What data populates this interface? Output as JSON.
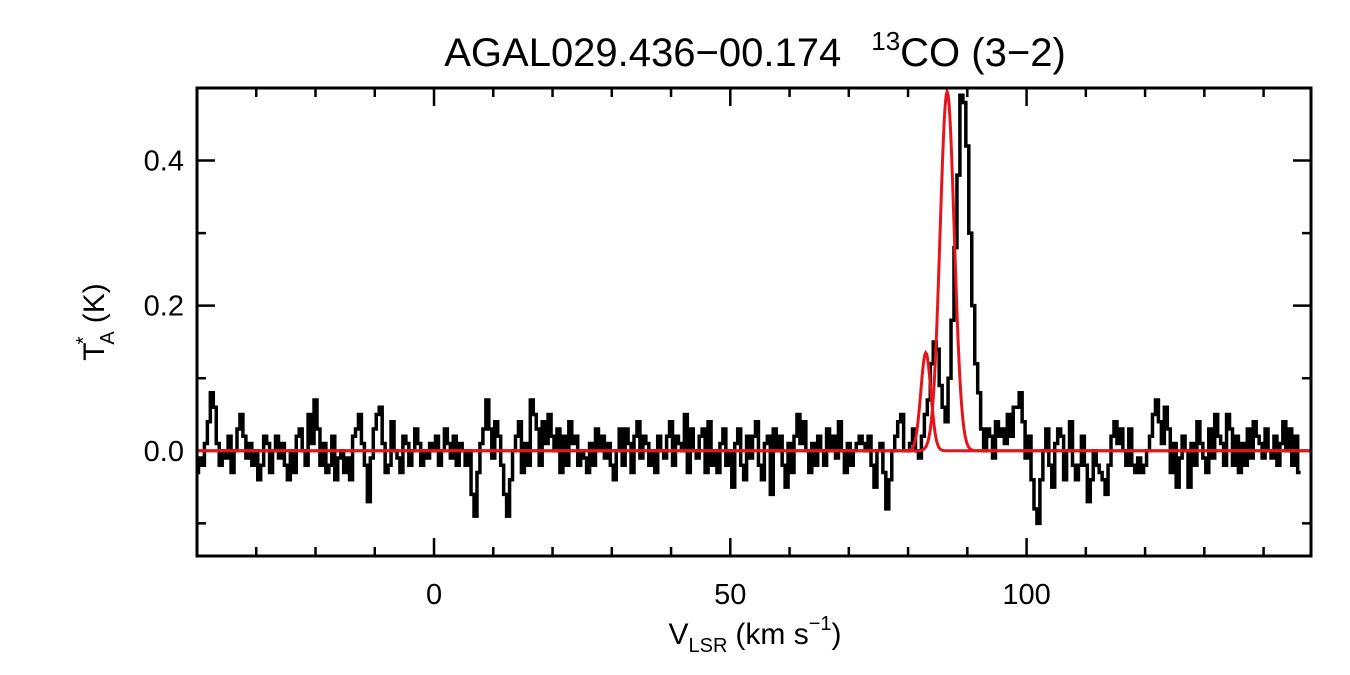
{
  "chart_data": {
    "type": "line",
    "title": {
      "source": "AGAL029.436−00.174",
      "isotope": "13",
      "molecule": "CO (3−2)"
    },
    "xlabel": {
      "main": "V",
      "subscript": "LSR",
      "units": "(km s",
      "exponent": "−1",
      "close": ")"
    },
    "ylabel": {
      "main": "T",
      "superscript": "*",
      "subscript": "A",
      "units": "(K)"
    },
    "xlim": [
      -40,
      148
    ],
    "ylim": [
      -0.145,
      0.5
    ],
    "xticks": [
      {
        "value": 0,
        "label": "0"
      },
      {
        "value": 50,
        "label": "50"
      },
      {
        "value": 100,
        "label": "100"
      }
    ],
    "yticks": [
      {
        "value": 0.0,
        "label": "0.0"
      },
      {
        "value": 0.2,
        "label": "0.2"
      },
      {
        "value": 0.4,
        "label": "0.4"
      }
    ],
    "x_minor_step": 10,
    "y_minor_step": 0.1,
    "spectrum": {
      "x_start": -40,
      "channel_width": 0.5,
      "color": "#000000",
      "values": [
        -0.03,
        -0.01,
        -0.02,
        0.01,
        0.04,
        0.08,
        0.06,
        0.01,
        -0.02,
        0.0,
        -0.01,
        0.02,
        -0.03,
        0.0,
        0.03,
        0.05,
        0.02,
        -0.01,
        0.01,
        -0.02,
        0.0,
        -0.04,
        -0.02,
        0.02,
        0.01,
        -0.03,
        0.0,
        0.02,
        -0.01,
        0.01,
        -0.02,
        -0.04,
        0.0,
        -0.03,
        0.02,
        0.03,
        0.0,
        -0.02,
        0.05,
        0.01,
        0.07,
        0.03,
        -0.02,
        0.01,
        -0.03,
        -0.02,
        0.02,
        -0.04,
        -0.01,
        0.0,
        -0.03,
        -0.01,
        -0.04,
        0.02,
        0.03,
        0.05,
        0.01,
        -0.02,
        -0.07,
        -0.01,
        0.03,
        0.05,
        0.06,
        0.01,
        -0.03,
        -0.02,
        0.04,
        0.0,
        -0.01,
        -0.03,
        0.02,
        0.01,
        -0.02,
        0.0,
        0.03,
        0.01,
        -0.02,
        0.0,
        -0.01,
        0.01,
        0.0,
        0.02,
        -0.02,
        0.0,
        0.03,
        0.01,
        -0.01,
        0.02,
        -0.02,
        0.01,
        0.0,
        -0.02,
        0.0,
        -0.06,
        -0.09,
        -0.03,
        0.01,
        0.03,
        0.07,
        0.03,
        -0.01,
        0.04,
        0.02,
        -0.02,
        -0.06,
        -0.09,
        -0.04,
        0.0,
        0.02,
        0.04,
        -0.03,
        0.01,
        -0.02,
        0.07,
        0.05,
        0.03,
        -0.02,
        0.04,
        0.01,
        0.05,
        0.02,
        0.0,
        0.03,
        -0.03,
        0.02,
        -0.02,
        0.04,
        0.01,
        0.02,
        -0.02,
        0.0,
        -0.01,
        -0.03,
        0.01,
        -0.02,
        0.03,
        0.0,
        0.02,
        -0.01,
        0.01,
        -0.02,
        -0.04,
        0.0,
        0.03,
        -0.02,
        0.03,
        0.01,
        -0.03,
        0.02,
        0.04,
        -0.01,
        0.02,
        0.01,
        -0.02,
        0.0,
        -0.03,
        0.02,
        0.0,
        -0.01,
        0.02,
        0.04,
        -0.02,
        0.02,
        0.01,
        0.0,
        0.05,
        -0.03,
        0.03,
        0.0,
        -0.01,
        0.02,
        0.03,
        -0.03,
        0.04,
        -0.02,
        0.0,
        -0.03,
        0.01,
        0.03,
        -0.02,
        0.0,
        -0.05,
        0.01,
        0.03,
        -0.02,
        -0.04,
        0.02,
        -0.01,
        0.02,
        0.04,
        -0.02,
        -0.04,
        0.01,
        0.02,
        -0.06,
        0.03,
        0.0,
        0.02,
        -0.02,
        -0.05,
        0.01,
        -0.03,
        0.02,
        0.05,
        0.01,
        0.04,
        0.0,
        -0.03,
        0.01,
        -0.02,
        0.02,
        0.0,
        -0.02,
        0.03,
        0.0,
        0.02,
        -0.01,
        0.04,
        0.0,
        -0.03,
        0.01,
        -0.02,
        0.0,
        0.01,
        0.02,
        0.01,
        0.0,
        0.02,
        -0.02,
        -0.05,
        0.0,
        0.01,
        -0.03,
        -0.08,
        -0.04,
        0.0,
        0.02,
        0.04,
        0.05,
        0.0,
        0.0,
        0.01,
        0.03,
        0.0,
        -0.01,
        0.02,
        0.05,
        0.07,
        0.12,
        0.15,
        0.14,
        0.09,
        0.06,
        0.04,
        0.1,
        0.18,
        0.28,
        0.38,
        0.49,
        0.48,
        0.42,
        0.3,
        0.2,
        0.12,
        0.08,
        0.03,
        0.0,
        0.03,
        0.02,
        -0.01,
        0.04,
        0.02,
        0.03,
        0.01,
        0.05,
        0.02,
        0.06,
        0.06,
        0.08,
        0.04,
        -0.01,
        0.02,
        -0.04,
        -0.08,
        -0.1,
        -0.04,
        0.0,
        0.03,
        -0.02,
        -0.05,
        0.01,
        0.03,
        0.02,
        -0.04,
        0.0,
        0.04,
        -0.02,
        -0.04,
        -0.02,
        0.02,
        -0.02,
        -0.07,
        -0.04,
        0.0,
        -0.02,
        -0.03,
        -0.04,
        -0.06,
        -0.02,
        0.02,
        0.04,
        0.01,
        0.03,
        0.0,
        -0.02,
        0.03,
        -0.02,
        -0.03,
        -0.01,
        -0.03,
        -0.02,
        0.0,
        0.02,
        0.05,
        0.07,
        0.04,
        0.01,
        0.06,
        0.03,
        -0.03,
        0.01,
        -0.05,
        -0.01,
        0.02,
        0.0,
        -0.05,
        0.01,
        -0.02,
        0.04,
        0.01,
        -0.01,
        -0.03,
        0.03,
        -0.01,
        0.05,
        0.02,
        0.01,
        -0.02,
        0.05,
        0.03,
        -0.02,
        0.02,
        -0.03,
        0.01,
        -0.02,
        0.03,
        -0.01,
        0.04,
        0.02,
        0.01,
        -0.01,
        0.03,
        0.0,
        -0.01,
        0.02,
        -0.02,
        0.01,
        0.04,
        0.0,
        0.03,
        -0.02,
        0.02,
        -0.03
      ]
    },
    "fits": [
      {
        "amplitude": 0.135,
        "center": 83.0,
        "sigma": 0.85,
        "color": "#e8141b"
      },
      {
        "amplitude": 0.495,
        "center": 86.6,
        "sigma": 1.2,
        "color": "#e8141b"
      }
    ]
  }
}
